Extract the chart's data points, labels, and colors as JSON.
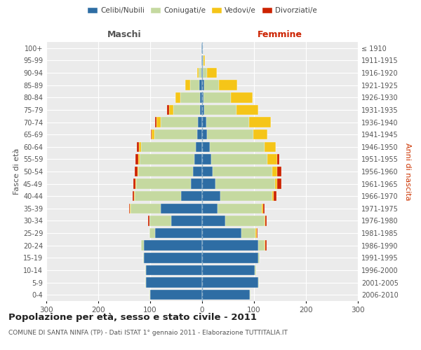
{
  "age_groups": [
    "0-4",
    "5-9",
    "10-14",
    "15-19",
    "20-24",
    "25-29",
    "30-34",
    "35-39",
    "40-44",
    "45-49",
    "50-54",
    "55-59",
    "60-64",
    "65-69",
    "70-74",
    "75-79",
    "80-84",
    "85-89",
    "90-94",
    "95-99",
    "100+"
  ],
  "birth_years": [
    "2006-2010",
    "2001-2005",
    "1996-2000",
    "1991-1995",
    "1986-1990",
    "1981-1985",
    "1976-1980",
    "1971-1975",
    "1966-1970",
    "1961-1965",
    "1956-1960",
    "1951-1955",
    "1946-1950",
    "1941-1945",
    "1936-1940",
    "1931-1935",
    "1926-1930",
    "1921-1925",
    "1916-1920",
    "1911-1915",
    "≤ 1910"
  ],
  "male": {
    "celibi": [
      100,
      108,
      108,
      112,
      112,
      90,
      60,
      80,
      40,
      22,
      18,
      15,
      12,
      10,
      8,
      4,
      4,
      5,
      2,
      1,
      1
    ],
    "coniugati": [
      1,
      1,
      1,
      2,
      5,
      12,
      42,
      58,
      90,
      105,
      105,
      105,
      105,
      82,
      72,
      52,
      38,
      18,
      5,
      1,
      0
    ],
    "vedovi": [
      0,
      0,
      0,
      0,
      0,
      0,
      0,
      1,
      1,
      2,
      2,
      3,
      4,
      5,
      8,
      8,
      10,
      10,
      3,
      0,
      0
    ],
    "divorziati": [
      0,
      0,
      0,
      0,
      0,
      0,
      2,
      2,
      3,
      4,
      5,
      5,
      5,
      2,
      2,
      3,
      0,
      0,
      0,
      0,
      0
    ]
  },
  "female": {
    "nubili": [
      92,
      108,
      102,
      108,
      108,
      75,
      45,
      30,
      35,
      25,
      20,
      18,
      15,
      10,
      8,
      4,
      3,
      4,
      2,
      1,
      1
    ],
    "coniugate": [
      1,
      2,
      2,
      3,
      12,
      28,
      75,
      85,
      100,
      115,
      115,
      108,
      105,
      88,
      82,
      62,
      52,
      28,
      8,
      2,
      0
    ],
    "vedove": [
      0,
      0,
      0,
      0,
      2,
      2,
      2,
      2,
      3,
      5,
      10,
      18,
      22,
      28,
      42,
      42,
      42,
      36,
      18,
      3,
      1
    ],
    "divorziate": [
      0,
      0,
      0,
      0,
      2,
      2,
      2,
      3,
      5,
      8,
      8,
      4,
      0,
      0,
      0,
      0,
      0,
      0,
      0,
      0,
      0
    ]
  },
  "colors": {
    "celibi": "#2e6da4",
    "coniugati": "#c5d9a0",
    "vedovi": "#f5c518",
    "divorziati": "#cc2200"
  },
  "title": "Popolazione per età, sesso e stato civile - 2011",
  "subtitle": "COMUNE DI SANTA NINFA (TP) - Dati ISTAT 1° gennaio 2011 - Elaborazione TUTTITALIA.IT",
  "xlabel_left": "Maschi",
  "xlabel_right": "Femmine",
  "ylabel_left": "Fasce di età",
  "ylabel_right": "Anni di nascita",
  "xlim": 300,
  "bg_color": "#ffffff",
  "plot_bg": "#ebebeb",
  "grid_color": "#ffffff"
}
